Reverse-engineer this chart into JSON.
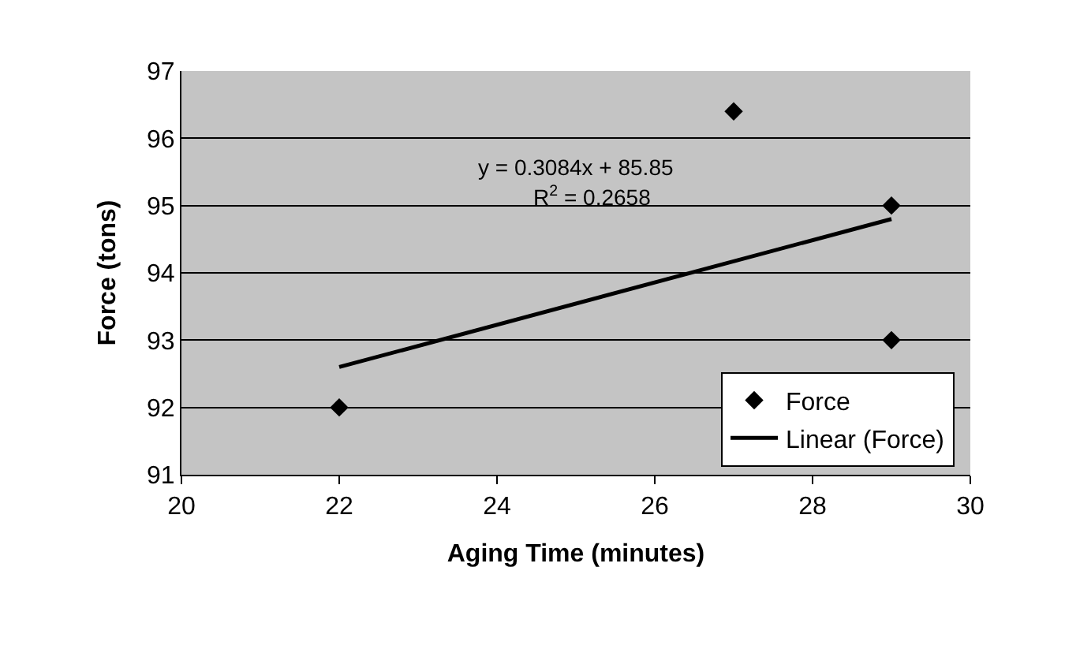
{
  "chart_data": {
    "type": "scatter",
    "xlabel": "Aging Time (minutes)",
    "ylabel": "Force (tons)",
    "xlim": [
      20,
      30
    ],
    "xticks": [
      20,
      22,
      24,
      26,
      28,
      30
    ],
    "ylim": [
      91,
      97
    ],
    "yticks": [
      91,
      92,
      93,
      94,
      95,
      96,
      97
    ],
    "grid": "y",
    "legend": "bottom right",
    "series": [
      {
        "name": "Force",
        "marker": "diamond",
        "color": "#000000",
        "x": [
          22,
          27,
          29,
          29
        ],
        "values": [
          92,
          96.4,
          95,
          93
        ]
      },
      {
        "name": "Linear (Force)",
        "type": "line",
        "color": "#000000",
        "x": [
          22,
          29
        ],
        "values": [
          92.6,
          94.8
        ]
      }
    ],
    "annotations": [
      "y = 0.3084x + 85.85",
      "R$^{2}$ = 0.2658"
    ]
  }
}
